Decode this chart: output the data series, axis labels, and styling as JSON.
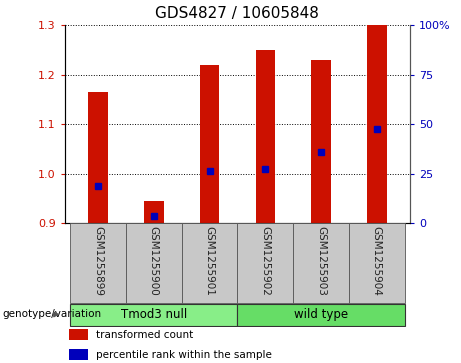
{
  "title": "GDS4827 / 10605848",
  "samples": [
    "GSM1255899",
    "GSM1255900",
    "GSM1255901",
    "GSM1255902",
    "GSM1255903",
    "GSM1255904"
  ],
  "bar_values": [
    1.165,
    0.945,
    1.22,
    1.25,
    1.23,
    1.3
  ],
  "bar_base": 0.9,
  "percentile_values": [
    0.975,
    0.915,
    1.005,
    1.01,
    1.045,
    1.09
  ],
  "ylim_left": [
    0.9,
    1.3
  ],
  "ylim_right": [
    0,
    100
  ],
  "yticks_left": [
    0.9,
    1.0,
    1.1,
    1.2,
    1.3
  ],
  "yticks_right": [
    0,
    25,
    50,
    75,
    100
  ],
  "ytick_labels_right": [
    "0",
    "25",
    "50",
    "75",
    "100%"
  ],
  "bar_color": "#cc1100",
  "percentile_color": "#0000bb",
  "bar_width": 0.35,
  "groups": [
    {
      "label": "Tmod3 null",
      "start": 0,
      "end": 3,
      "color": "#88ee88"
    },
    {
      "label": "wild type",
      "start": 3,
      "end": 6,
      "color": "#66dd66"
    }
  ],
  "genotype_label": "genotype/variation",
  "legend_items": [
    {
      "label": "transformed count",
      "color": "#cc1100"
    },
    {
      "label": "percentile rank within the sample",
      "color": "#0000bb"
    }
  ],
  "left_tick_color": "#cc1100",
  "right_tick_color": "#0000bb",
  "tick_fontsize": 8,
  "title_fontsize": 11,
  "label_fontsize": 8,
  "background_color": "#ffffff",
  "plot_bg_color": "#ffffff",
  "label_area_color": "#c8c8c8",
  "separator_color": "#555555"
}
